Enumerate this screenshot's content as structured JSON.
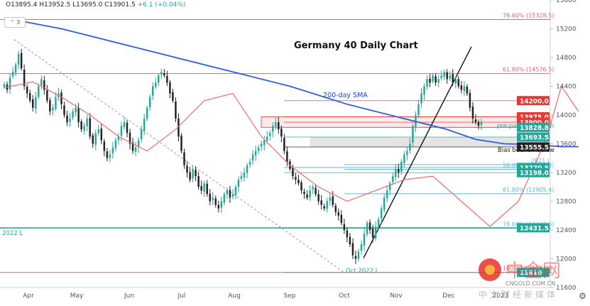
{
  "ohlc": {
    "open": "O13895.4",
    "high": "H13952.5",
    "low": "L13695.0",
    "close": "C13901.5",
    "change": "+6.1 (+0.04%)"
  },
  "collapse_label": "3",
  "chart_data": {
    "type": "candlestick",
    "title": "Germany 40 Daily Chart",
    "y_range": [
      11600,
      15600
    ],
    "y_ticks": [
      11600,
      12000,
      12400,
      12800,
      13200,
      13600,
      14000,
      14400,
      14800,
      15200,
      15600
    ],
    "x_labels": [
      "Apr",
      "May",
      "Jun",
      "Jul",
      "Aug",
      "Sep",
      "Oct",
      "Nov",
      "Dec",
      "2023"
    ],
    "closes": [
      14430,
      14350,
      14520,
      14600,
      14700,
      14850,
      14650,
      14400,
      14300,
      14200,
      14100,
      14250,
      14400,
      14500,
      14350,
      14200,
      14050,
      14100,
      14250,
      14300,
      14150,
      14000,
      13900,
      13950,
      14050,
      14100,
      13900,
      13800,
      13850,
      13950,
      13700,
      13600,
      13750,
      13800,
      13650,
      13500,
      13400,
      13450,
      13550,
      13650,
      13700,
      13850,
      13900,
      13750,
      13600,
      13500,
      13550,
      13650,
      13800,
      13950,
      14100,
      14250,
      14400,
      14450,
      14550,
      14600,
      14550,
      14450,
      14300,
      14200,
      13950,
      13700,
      13500,
      13300,
      13200,
      13100,
      13250,
      13150,
      13000,
      12950,
      13050,
      12900,
      12800,
      12850,
      12750,
      12700,
      12800,
      12900,
      12950,
      12850,
      12900,
      13000,
      13100,
      13150,
      13200,
      13300,
      13350,
      13450,
      13500,
      13550,
      13600,
      13650,
      13700,
      13750,
      13850,
      13900,
      13800,
      13700,
      13500,
      13350,
      13250,
      13150,
      13100,
      13050,
      12950,
      12900,
      12850,
      12950,
      13000,
      12900,
      12800,
      12750,
      12700,
      12800,
      12850,
      12750,
      12650,
      12600,
      12500,
      12400,
      12300,
      12200,
      12050,
      12000,
      12100,
      12200,
      12350,
      12500,
      12400,
      12300,
      12450,
      12550,
      12700,
      12850,
      12950,
      13050,
      13150,
      13250,
      13200,
      13350,
      13450,
      13500,
      13600,
      13850,
      14000,
      14150,
      14300,
      14400,
      14500,
      14450,
      14550,
      14450,
      14500,
      14550,
      14600,
      14500,
      14550,
      14450,
      14500,
      14400,
      14350,
      14400,
      14300,
      14100,
      13950,
      13900,
      13850,
      13901.5
    ],
    "sma200": [
      [
        0,
        15350
      ],
      [
        20,
        15200
      ],
      [
        40,
        15000
      ],
      [
        60,
        14800
      ],
      [
        80,
        14600
      ],
      [
        100,
        14400
      ],
      [
        120,
        14150
      ],
      [
        140,
        13950
      ],
      [
        155,
        13800
      ],
      [
        165,
        13660
      ],
      [
        175,
        13600
      ],
      [
        185,
        13590
      ],
      [
        195,
        13560
      ],
      [
        201,
        13560
      ]
    ],
    "ema": [
      [
        0,
        14380
      ],
      [
        10,
        14460
      ],
      [
        20,
        14250
      ],
      [
        30,
        14000
      ],
      [
        40,
        13700
      ],
      [
        50,
        13500
      ],
      [
        60,
        13800
      ],
      [
        70,
        14200
      ],
      [
        80,
        14300
      ],
      [
        90,
        13700
      ],
      [
        100,
        13300
      ],
      [
        110,
        13000
      ],
      [
        120,
        12800
      ],
      [
        130,
        12950
      ],
      [
        140,
        13100
      ],
      [
        150,
        13150
      ],
      [
        160,
        12800
      ],
      [
        170,
        12450
      ],
      [
        180,
        12800
      ],
      [
        190,
        13700
      ],
      [
        195,
        14400
      ],
      [
        201,
        14050
      ]
    ],
    "fib_levels": [
      {
        "label": "78.60% (15328.5)",
        "value": 15328.5,
        "color": "#e85d6a"
      },
      {
        "label": "61.80% (14576.5)",
        "value": 14576.5,
        "color": "#e85d6a"
      },
      {
        "label": "2021 L",
        "value": 13310,
        "color": "#5bb6e0"
      },
      {
        "label": "50.00% (13245.9)",
        "value": 13245.9,
        "color": "#5bb6e0"
      },
      {
        "label": "61.80% (12905.4)",
        "value": 12905.4,
        "color": "#5bb6e0"
      },
      {
        "label": "78.60% (12423.6)",
        "value": 12423.6,
        "color": "#5bb6e0"
      },
      {
        "label": "100.00% (11810)",
        "value": 11810,
        "color": "#e85d6a"
      }
    ],
    "price_tags": [
      {
        "label": "14200.0",
        "value": 14200,
        "bg": "#e53935"
      },
      {
        "label": "13975.0",
        "value": 13975,
        "bg": "#e53935"
      },
      {
        "label": "13900.0",
        "value": 13900,
        "bg": "#e53935"
      },
      {
        "label": "13828.8",
        "value": 13828.8,
        "bg": "#26a69a"
      },
      {
        "label": "13693.5",
        "value": 13693.5,
        "bg": "#26a69a"
      },
      {
        "label": "13555.5",
        "value": 13555.5,
        "bg": "#222222"
      },
      {
        "label": "13270.5",
        "value": 13270.5,
        "bg": "#26a69a"
      },
      {
        "label": "13198.0",
        "value": 13198,
        "bg": "#26a69a"
      },
      {
        "label": "12431.5",
        "value": 12431.5,
        "bg": "#26a69a"
      },
      {
        "label": "11810",
        "value": 11810,
        "bg": "#26a69a"
      }
    ],
    "annotations": [
      {
        "text": "200-day SMA",
        "color": "#1a3fd6"
      },
      {
        "text": "pre-pandemic high",
        "color": "#26a69a"
      },
      {
        "text": "Bias bearish below",
        "color": "#222222"
      },
      {
        "text": "2022 L",
        "color": "#26a69a"
      },
      {
        "text": "Oct 2022 L",
        "color": "#26a69a"
      }
    ],
    "colors": {
      "up": "#26a69a",
      "down": "#222222",
      "sma": "#2f5cd9",
      "ema": "#ef6b6b"
    }
  },
  "watermark": {
    "text": "中金网",
    "sub": "CNGOLD.COM.CN",
    "tagline": "中文财经新媒体",
    "accent": "#e8312a"
  }
}
